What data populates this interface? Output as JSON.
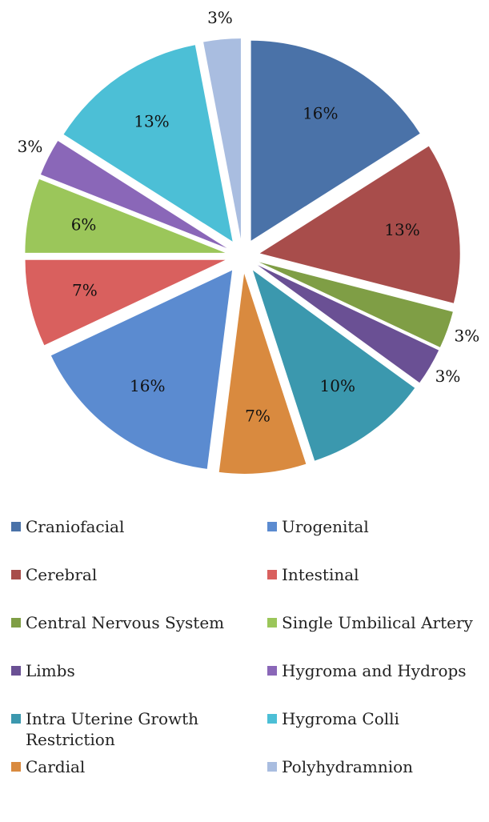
{
  "chart_data": {
    "type": "pie",
    "categories": [
      "Craniofacial",
      "Cerebral",
      "Central Nervous System",
      "Limbs",
      "Intra Uterine Growth Restriction",
      "Cardial",
      "Urogenital",
      "Intestinal",
      "Single Umbilical Artery",
      "Hygroma and Hydrops",
      "Hygroma Colli",
      "Polyhydramnion"
    ],
    "values": [
      16,
      13,
      3,
      3,
      10,
      7,
      16,
      7,
      6,
      3,
      13,
      3
    ],
    "value_labels": [
      "16%",
      "13%",
      "3%",
      "3%",
      "10%",
      "7%",
      "16%",
      "7%",
      "6%",
      "3%",
      "13%",
      "3%"
    ],
    "colors": [
      "#4a72a8",
      "#a84d4b",
      "#7f9e45",
      "#6a5094",
      "#3b98ae",
      "#d98a3f",
      "#5b8bd0",
      "#d9605e",
      "#9bc65a",
      "#8a67b8",
      "#4cbfd6",
      "#a9bde0"
    ]
  }
}
